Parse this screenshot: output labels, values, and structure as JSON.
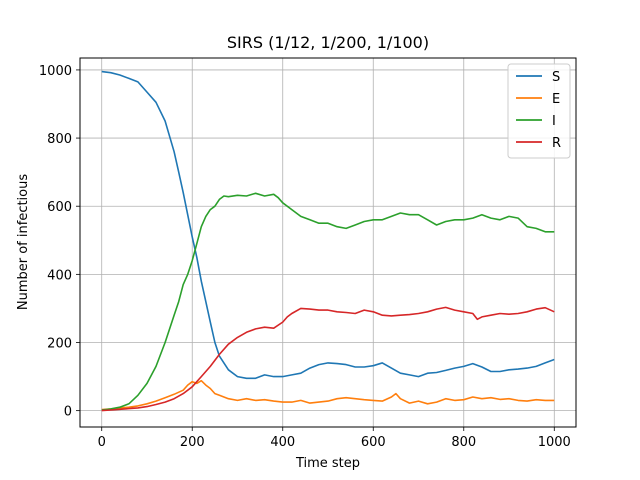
{
  "chart_data": {
    "type": "line",
    "title": "SIRS (1/12, 1/200, 1/100)",
    "xlabel": "Time step",
    "ylabel": "Number of infectious",
    "xlim": [
      -48,
      1048
    ],
    "ylim": [
      -48,
      1035
    ],
    "xticks": [
      0,
      200,
      400,
      600,
      800,
      1000
    ],
    "yticks": [
      0,
      200,
      400,
      600,
      800,
      1000
    ],
    "grid": true,
    "legend_position": "top-right",
    "series": [
      {
        "name": "S",
        "color": "#1f77b4",
        "x": [
          0,
          20,
          40,
          60,
          80,
          100,
          120,
          140,
          160,
          170,
          180,
          190,
          200,
          210,
          220,
          230,
          240,
          250,
          260,
          280,
          300,
          320,
          340,
          360,
          380,
          400,
          420,
          440,
          460,
          480,
          500,
          520,
          540,
          560,
          580,
          600,
          620,
          640,
          660,
          680,
          700,
          720,
          740,
          760,
          780,
          800,
          820,
          840,
          860,
          880,
          900,
          920,
          940,
          960,
          980,
          1000
        ],
        "y": [
          995,
          992,
          985,
          975,
          965,
          935,
          905,
          850,
          760,
          700,
          640,
          575,
          510,
          450,
          380,
          320,
          260,
          200,
          160,
          120,
          100,
          95,
          95,
          105,
          100,
          100,
          105,
          110,
          125,
          135,
          140,
          138,
          135,
          128,
          128,
          132,
          140,
          125,
          110,
          105,
          100,
          110,
          112,
          118,
          125,
          130,
          138,
          128,
          115,
          115,
          120,
          122,
          125,
          130,
          140,
          150
        ]
      },
      {
        "name": "E",
        "color": "#ff7f0e",
        "x": [
          0,
          20,
          40,
          60,
          80,
          100,
          120,
          140,
          160,
          180,
          190,
          200,
          210,
          220,
          230,
          240,
          250,
          260,
          280,
          300,
          320,
          340,
          360,
          380,
          400,
          420,
          440,
          460,
          480,
          500,
          520,
          540,
          560,
          580,
          600,
          620,
          640,
          650,
          660,
          680,
          700,
          720,
          740,
          760,
          780,
          800,
          820,
          840,
          860,
          880,
          900,
          920,
          940,
          960,
          980,
          1000
        ],
        "y": [
          3,
          5,
          8,
          10,
          14,
          20,
          28,
          38,
          48,
          60,
          75,
          85,
          80,
          88,
          75,
          65,
          50,
          45,
          35,
          30,
          35,
          30,
          32,
          28,
          25,
          25,
          30,
          22,
          25,
          28,
          35,
          38,
          35,
          32,
          30,
          28,
          40,
          50,
          35,
          22,
          28,
          20,
          25,
          35,
          30,
          32,
          40,
          35,
          38,
          33,
          35,
          30,
          28,
          32,
          30,
          30
        ]
      },
      {
        "name": "I",
        "color": "#2ca02c",
        "x": [
          0,
          20,
          40,
          60,
          80,
          100,
          120,
          140,
          160,
          170,
          180,
          190,
          200,
          210,
          220,
          230,
          240,
          250,
          260,
          270,
          280,
          300,
          320,
          340,
          360,
          380,
          390,
          400,
          420,
          440,
          460,
          480,
          500,
          520,
          540,
          560,
          580,
          600,
          620,
          640,
          660,
          680,
          700,
          720,
          740,
          760,
          780,
          800,
          820,
          840,
          860,
          880,
          900,
          920,
          940,
          960,
          980,
          1000
        ],
        "y": [
          2,
          5,
          10,
          20,
          45,
          80,
          130,
          200,
          280,
          320,
          370,
          400,
          440,
          490,
          540,
          570,
          590,
          600,
          620,
          630,
          628,
          632,
          630,
          638,
          630,
          635,
          625,
          610,
          590,
          570,
          560,
          550,
          550,
          540,
          535,
          545,
          555,
          560,
          560,
          570,
          580,
          575,
          575,
          560,
          545,
          555,
          560,
          560,
          565,
          575,
          565,
          560,
          570,
          565,
          540,
          535,
          525,
          525
        ]
      },
      {
        "name": "R",
        "color": "#d62728",
        "x": [
          0,
          20,
          40,
          60,
          80,
          100,
          120,
          140,
          160,
          180,
          200,
          220,
          240,
          260,
          280,
          300,
          320,
          340,
          360,
          380,
          400,
          410,
          420,
          440,
          460,
          480,
          500,
          520,
          540,
          560,
          580,
          600,
          620,
          640,
          660,
          680,
          700,
          720,
          740,
          760,
          780,
          800,
          820,
          830,
          840,
          860,
          880,
          900,
          920,
          940,
          960,
          980,
          1000
        ],
        "y": [
          0,
          2,
          4,
          6,
          8,
          12,
          18,
          25,
          35,
          50,
          70,
          100,
          130,
          165,
          195,
          215,
          230,
          240,
          245,
          242,
          260,
          275,
          285,
          300,
          298,
          295,
          295,
          290,
          288,
          285,
          295,
          290,
          280,
          278,
          280,
          282,
          285,
          290,
          298,
          303,
          295,
          290,
          285,
          268,
          275,
          280,
          285,
          283,
          285,
          290,
          298,
          302,
          290
        ]
      }
    ]
  }
}
